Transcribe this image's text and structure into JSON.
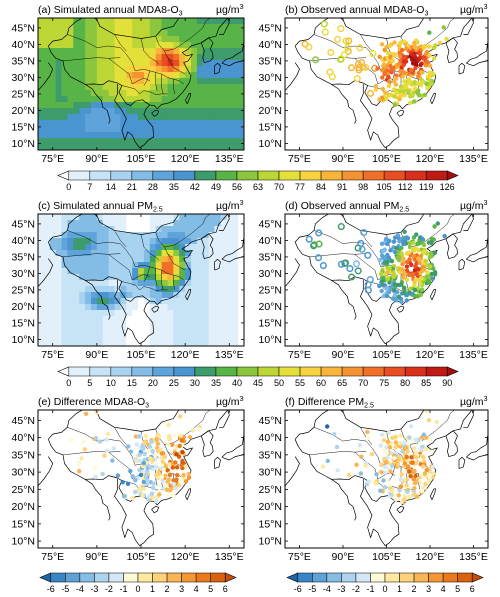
{
  "panels": [
    {
      "id": "a",
      "title_pre": "(a) Simulated annual MDA8-O",
      "title_sub": "3",
      "title_post": "",
      "unit": "µg/m",
      "unit_sup": "3",
      "kind": "field_o3",
      "ylabels": [
        "45°N",
        "40°N",
        "35°N",
        "30°N",
        "25°N",
        "20°N",
        "15°N",
        "10°N"
      ],
      "xlabels": [
        "75°E",
        "90°E",
        "105°E",
        "120°E",
        "135°E"
      ]
    },
    {
      "id": "b",
      "title_pre": "(b) Observed annual MDA8-O",
      "title_sub": "3",
      "title_post": "",
      "unit": "µg/m",
      "unit_sup": "3",
      "kind": "obs_o3",
      "ylabels": [
        "45°N",
        "40°N",
        "35°N",
        "30°N",
        "25°N",
        "20°N",
        "15°N",
        "10°N"
      ],
      "xlabels": [
        "75°E",
        "90°E",
        "105°E",
        "120°E",
        "135°E"
      ]
    },
    {
      "id": "c",
      "title_pre": "(c) Simulated annual PM",
      "title_sub": "2.5",
      "title_post": "",
      "unit": "µg/m",
      "unit_sup": "3",
      "kind": "field_pm",
      "ylabels": [
        "45°N",
        "40°N",
        "35°N",
        "30°N",
        "25°N",
        "20°N",
        "15°N",
        "10°N"
      ],
      "xlabels": [
        "75°E",
        "90°E",
        "105°E",
        "120°E",
        "135°E"
      ]
    },
    {
      "id": "d",
      "title_pre": "(d) Observed annual PM",
      "title_sub": "2.5",
      "title_post": "",
      "unit": "µg/m",
      "unit_sup": "3",
      "kind": "obs_pm",
      "ylabels": [
        "45°N",
        "40°N",
        "35°N",
        "30°N",
        "25°N",
        "20°N",
        "15°N",
        "10°N"
      ],
      "xlabels": [
        "75°E",
        "90°E",
        "105°E",
        "120°E",
        "135°E"
      ]
    },
    {
      "id": "e",
      "title_pre": "(e) Difference MDA8-O",
      "title_sub": "3",
      "title_post": "",
      "unit": "µg/m",
      "unit_sup": "3",
      "kind": "diff_o3",
      "ylabels": [
        "45°N",
        "40°N",
        "35°N",
        "30°N",
        "25°N",
        "20°N",
        "15°N",
        "10°N"
      ],
      "xlabels": [
        "75°E",
        "90°E",
        "105°E",
        "120°E",
        "135°E"
      ]
    },
    {
      "id": "f",
      "title_pre": "(f) Difference PM",
      "title_sub": "2.5",
      "title_post": "",
      "unit": "µg/m",
      "unit_sup": "3",
      "kind": "diff_pm",
      "ylabels": [
        "45°N",
        "40°N",
        "35°N",
        "30°N",
        "25°N",
        "20°N",
        "15°N",
        "10°N"
      ],
      "xlabels": [
        "75°E",
        "90°E",
        "105°E",
        "120°E",
        "135°E"
      ]
    }
  ],
  "colorbars": {
    "o3": {
      "ticks": [
        "0",
        "7",
        "14",
        "21",
        "28",
        "35",
        "42",
        "49",
        "56",
        "63",
        "70",
        "77",
        "84",
        "91",
        "98",
        "105",
        "112",
        "119",
        "126"
      ],
      "colors": [
        "#ffffff",
        "#e1f0fa",
        "#c6e4f6",
        "#a7d2f0",
        "#83bde6",
        "#5ea4da",
        "#4a94d0",
        "#3e9b6b",
        "#58b446",
        "#8cc63e",
        "#bcd735",
        "#e4e03a",
        "#f6d33f",
        "#f7b63a",
        "#f59332",
        "#f0702a",
        "#e84e22",
        "#d8301b",
        "#bf1a14",
        "#a50e0f"
      ]
    },
    "pm": {
      "ticks": [
        "0",
        "5",
        "10",
        "15",
        "20",
        "25",
        "30",
        "35",
        "40",
        "45",
        "50",
        "55",
        "60",
        "65",
        "70",
        "75",
        "80",
        "85",
        "90"
      ],
      "colors": [
        "#ffffff",
        "#e1f0fa",
        "#c6e4f6",
        "#a7d2f0",
        "#83bde6",
        "#5ea4da",
        "#4a94d0",
        "#3e9b6b",
        "#58b446",
        "#8cc63e",
        "#bcd735",
        "#e4e03a",
        "#f6d33f",
        "#f7b63a",
        "#f59332",
        "#f0702a",
        "#e84e22",
        "#d8301b",
        "#bf1a14",
        "#a50e0f"
      ]
    },
    "diff": {
      "ticks": [
        "-6",
        "-5",
        "-4",
        "-3",
        "-2",
        "-1",
        "0",
        "1",
        "2",
        "3",
        "4",
        "5",
        "6"
      ],
      "colors": [
        "#1f64a8",
        "#3a86c4",
        "#5fa3d6",
        "#86bde4",
        "#aed3ee",
        "#d3e7f6",
        "#fdfbd6",
        "#fde9a0",
        "#fcd27a",
        "#f9b553",
        "#f49633",
        "#ea7a1c",
        "#d9620f",
        "#c24e0a"
      ]
    }
  }
}
